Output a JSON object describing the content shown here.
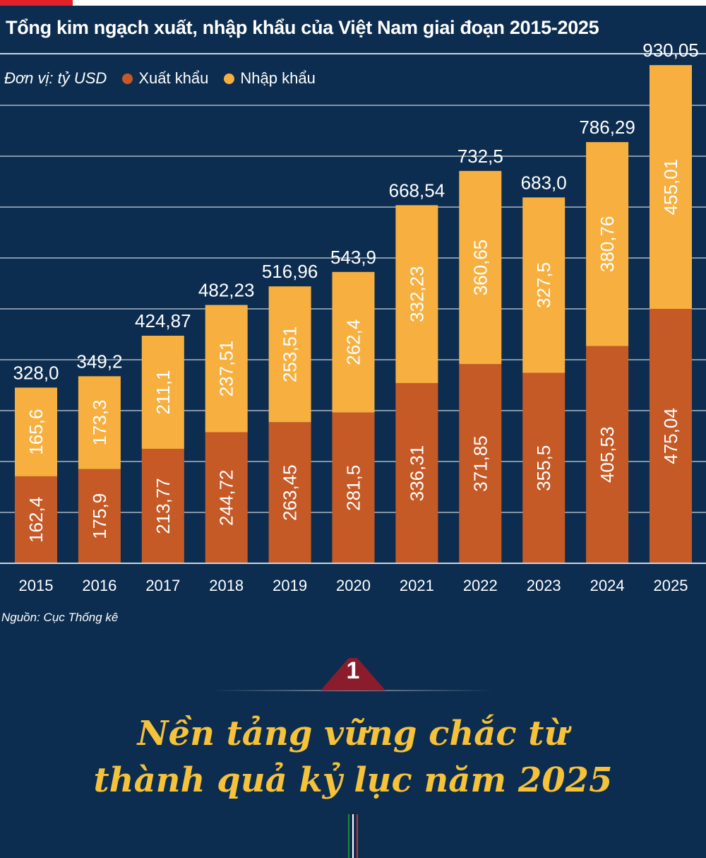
{
  "header": {
    "title": "Tổng kim ngạch xuất, nhập khẩu của Việt Nam giai đoạn 2015-2025",
    "unit": "Đơn vị: tỷ USD"
  },
  "legend": {
    "export_label": "Xuất khẩu",
    "import_label": "Nhập khẩu"
  },
  "colors": {
    "background": "#0c2d4f",
    "export": "#c55a27",
    "import": "#f7b040",
    "accent_red": "#e32129",
    "headline": "#f5c23a",
    "badge": "#8b1c2c"
  },
  "chart_data": {
    "type": "bar",
    "stacked": true,
    "categories": [
      "2015",
      "2016",
      "2017",
      "2018",
      "2019",
      "2020",
      "2021",
      "2022",
      "2023",
      "2024",
      "2025"
    ],
    "series": [
      {
        "name": "Xuất khẩu",
        "values": [
          162.4,
          175.9,
          213.77,
          244.72,
          263.45,
          281.5,
          336.31,
          371.85,
          355.5,
          405.53,
          475.04
        ],
        "labels": [
          "162,4",
          "175,9",
          "213,77",
          "244,72",
          "263,45",
          "281,5",
          "336,31",
          "371,85",
          "355,5",
          "405,53",
          "475,04"
        ]
      },
      {
        "name": "Nhập khẩu",
        "values": [
          165.6,
          173.3,
          211.1,
          237.51,
          253.51,
          262.4,
          332.23,
          360.65,
          327.5,
          380.76,
          455.01
        ],
        "labels": [
          "165,6",
          "173,3",
          "211,1",
          "237,51",
          "253,51",
          "262,4",
          "332,23",
          "360,65",
          "327,5",
          "380,76",
          "455,01"
        ]
      }
    ],
    "totals": [
      328.0,
      349.2,
      424.87,
      482.23,
      516.96,
      543.9,
      668.54,
      732.5,
      683.0,
      786.29,
      930.05
    ],
    "total_labels": [
      "328,0",
      "349,2",
      "424,87",
      "482,23",
      "516,96",
      "543,9",
      "668,54",
      "732,5",
      "683,0",
      "786,29",
      "930,05"
    ],
    "ylim": [
      0,
      950
    ],
    "grid": true,
    "legend_position": "top-left"
  },
  "footer": {
    "source": "Nguồn: Cục Thống kê"
  },
  "section": {
    "number": "1",
    "headline_line1": "Nền tảng vững chắc từ",
    "headline_line2": "thành quả kỷ lục năm 2025"
  }
}
